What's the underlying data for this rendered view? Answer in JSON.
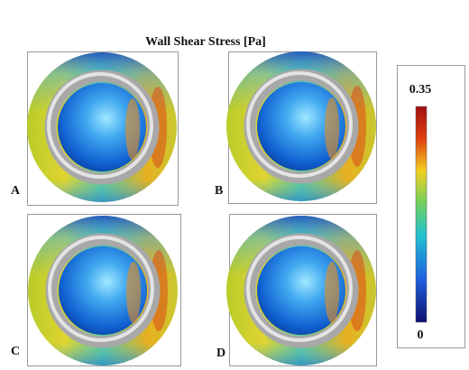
{
  "title": "Wall Shear Stress [Pa]",
  "panels": [
    {
      "label": "A"
    },
    {
      "label": "B"
    },
    {
      "label": "C"
    },
    {
      "label": "D"
    }
  ],
  "colorbar": {
    "max": 0.35,
    "min": 0
  }
}
